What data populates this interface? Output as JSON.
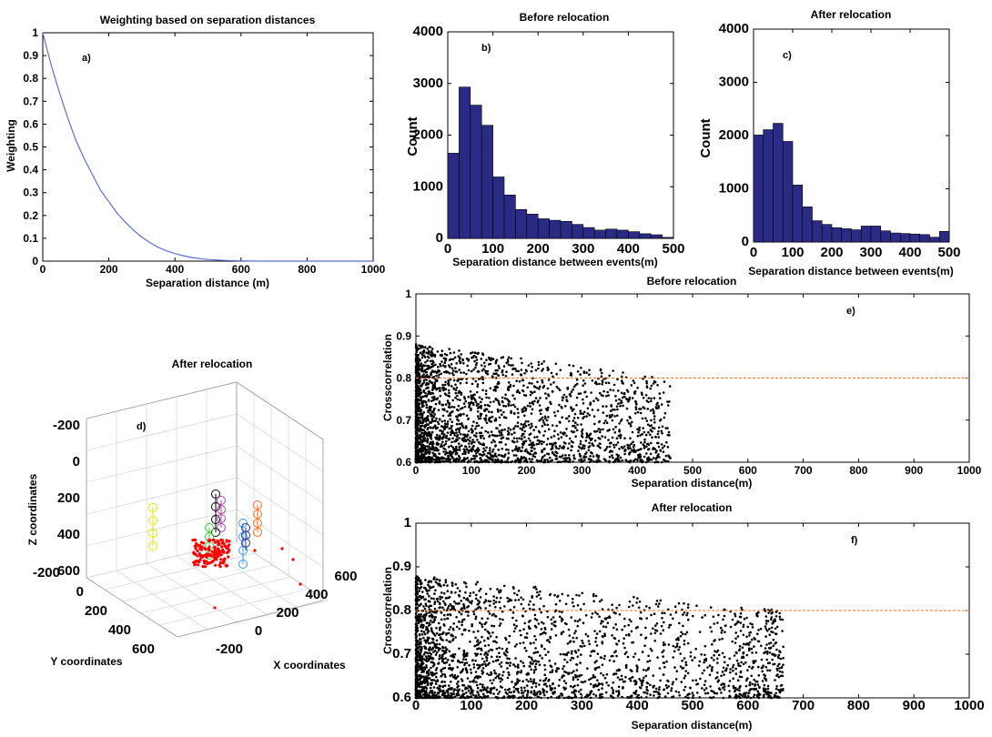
{
  "colors": {
    "bar": "#2b2b85",
    "curve": "#5b6fd1",
    "threshold": "#ff6a1a",
    "points": "#000000",
    "events3d": "#ff0000"
  },
  "chart_data": [
    {
      "id": "a",
      "type": "line",
      "panel_label": "a)",
      "title": "Weighting based on separation distances",
      "xlabel": "Separation distance (m)",
      "ylabel": "Weighting",
      "xlim": [
        0,
        1000
      ],
      "ylim": [
        0,
        1
      ],
      "xticks": [
        "0",
        "200",
        "400",
        "600",
        "800",
        "1000"
      ],
      "yticks": [
        "0",
        "0.1",
        "0.2",
        "0.3",
        "0.4",
        "0.5",
        "0.6",
        "0.7",
        "0.8",
        "0.9",
        "1"
      ],
      "x": [
        0,
        25,
        50,
        75,
        100,
        125,
        150,
        175,
        200,
        225,
        250,
        275,
        300,
        325,
        350,
        375,
        400,
        425,
        450,
        475,
        500,
        550,
        600,
        650,
        700,
        800,
        900,
        1000
      ],
      "y": [
        1.0,
        0.86,
        0.74,
        0.63,
        0.53,
        0.45,
        0.38,
        0.31,
        0.26,
        0.21,
        0.17,
        0.135,
        0.105,
        0.08,
        0.06,
        0.045,
        0.033,
        0.024,
        0.016,
        0.011,
        0.007,
        0.003,
        0.001,
        0,
        0,
        0,
        0,
        0
      ]
    },
    {
      "id": "b",
      "type": "bar",
      "panel_label": "b)",
      "title": "Before relocation",
      "xlabel": "Separation distance between events(m)",
      "ylabel": "Count",
      "xlim": [
        0,
        500
      ],
      "ylim": [
        0,
        4000
      ],
      "xticks": [
        "0",
        "100",
        "200",
        "300",
        "400",
        "500"
      ],
      "yticks": [
        "0",
        "1000",
        "2000",
        "3000",
        "4000"
      ],
      "bin_width": 25,
      "bins": [
        0,
        25,
        50,
        75,
        100,
        125,
        150,
        175,
        200,
        225,
        250,
        275,
        300,
        325,
        350,
        375,
        400,
        425,
        450,
        475
      ],
      "values": [
        1650,
        2930,
        2580,
        2190,
        1190,
        840,
        560,
        470,
        380,
        350,
        330,
        270,
        210,
        160,
        180,
        160,
        130,
        90,
        70,
        20
      ]
    },
    {
      "id": "c",
      "type": "bar",
      "panel_label": "c)",
      "title": "After relocation",
      "xlabel": "Separation distance between events(m)",
      "ylabel": "Count",
      "xlim": [
        0,
        500
      ],
      "ylim": [
        0,
        4000
      ],
      "xticks": [
        "0",
        "100",
        "200",
        "300",
        "400",
        "500"
      ],
      "yticks": [
        "0",
        "1000",
        "2000",
        "3000",
        "4000"
      ],
      "bin_width": 25,
      "bins": [
        0,
        25,
        50,
        75,
        100,
        125,
        150,
        175,
        200,
        225,
        250,
        275,
        300,
        325,
        350,
        375,
        400,
        425,
        450,
        475
      ],
      "values": [
        2010,
        2110,
        2230,
        1890,
        1070,
        660,
        400,
        330,
        270,
        250,
        230,
        300,
        300,
        210,
        170,
        160,
        150,
        140,
        90,
        200
      ]
    },
    {
      "id": "d",
      "type": "scatter3d",
      "panel_label": "d)",
      "title": "After  relocation",
      "xlabel": "X coordinates",
      "ylabel": "Y coordinates",
      "zlabel": "Z coordinates",
      "xticks": [
        "-200",
        "0",
        "200",
        "400",
        "600"
      ],
      "yticks": [
        "-200",
        "0",
        "200",
        "400",
        "600"
      ],
      "zticks": [
        "-200",
        "0",
        "200",
        "400",
        "600"
      ]
    },
    {
      "id": "e",
      "type": "scatter",
      "panel_label": "e)",
      "title": "Before relocation",
      "xlabel": "Separation distance(m)",
      "ylabel": "Crosscorrelation",
      "xlim": [
        0,
        1000
      ],
      "ylim": [
        0.6,
        1
      ],
      "xticks": [
        "0",
        "100",
        "200",
        "300",
        "400",
        "500",
        "600",
        "700",
        "800",
        "900",
        "1000"
      ],
      "yticks": [
        "0.6",
        "0.7",
        "0.8",
        "0.9",
        "1"
      ],
      "threshold": 0.8,
      "max_distance": 460
    },
    {
      "id": "f",
      "type": "scatter",
      "panel_label": "f)",
      "title": "After relocation",
      "xlabel": "Separation distance(m)",
      "ylabel": "Crosscorrelation",
      "xlim": [
        0,
        1000
      ],
      "ylim": [
        0.6,
        1
      ],
      "xticks": [
        "0",
        "100",
        "200",
        "300",
        "400",
        "500",
        "600",
        "700",
        "800",
        "900",
        "1000"
      ],
      "yticks": [
        "0.6",
        "0.7",
        "0.8",
        "0.9",
        "1"
      ],
      "threshold": 0.8,
      "max_distance": 665
    }
  ]
}
